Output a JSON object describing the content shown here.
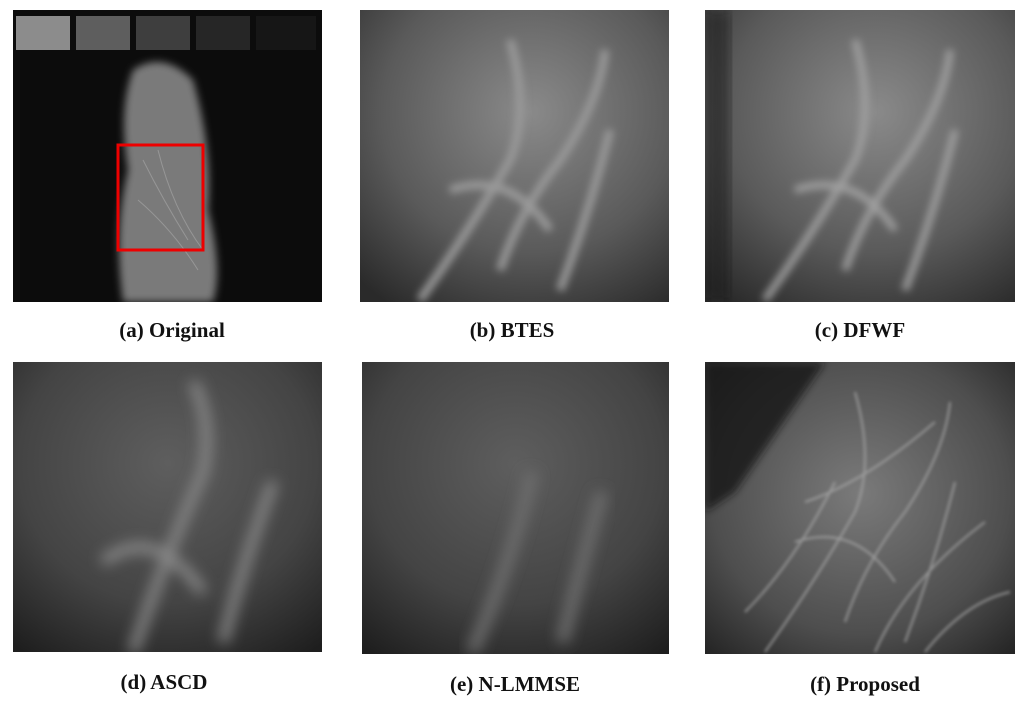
{
  "panels": [
    {
      "caption": "(a) Original"
    },
    {
      "caption": "(b) BTES"
    },
    {
      "caption": "(c) DFWF"
    },
    {
      "caption": "(d) ASCD"
    },
    {
      "caption": "(e) N-LMMSE"
    },
    {
      "caption": "(f) Proposed"
    }
  ]
}
